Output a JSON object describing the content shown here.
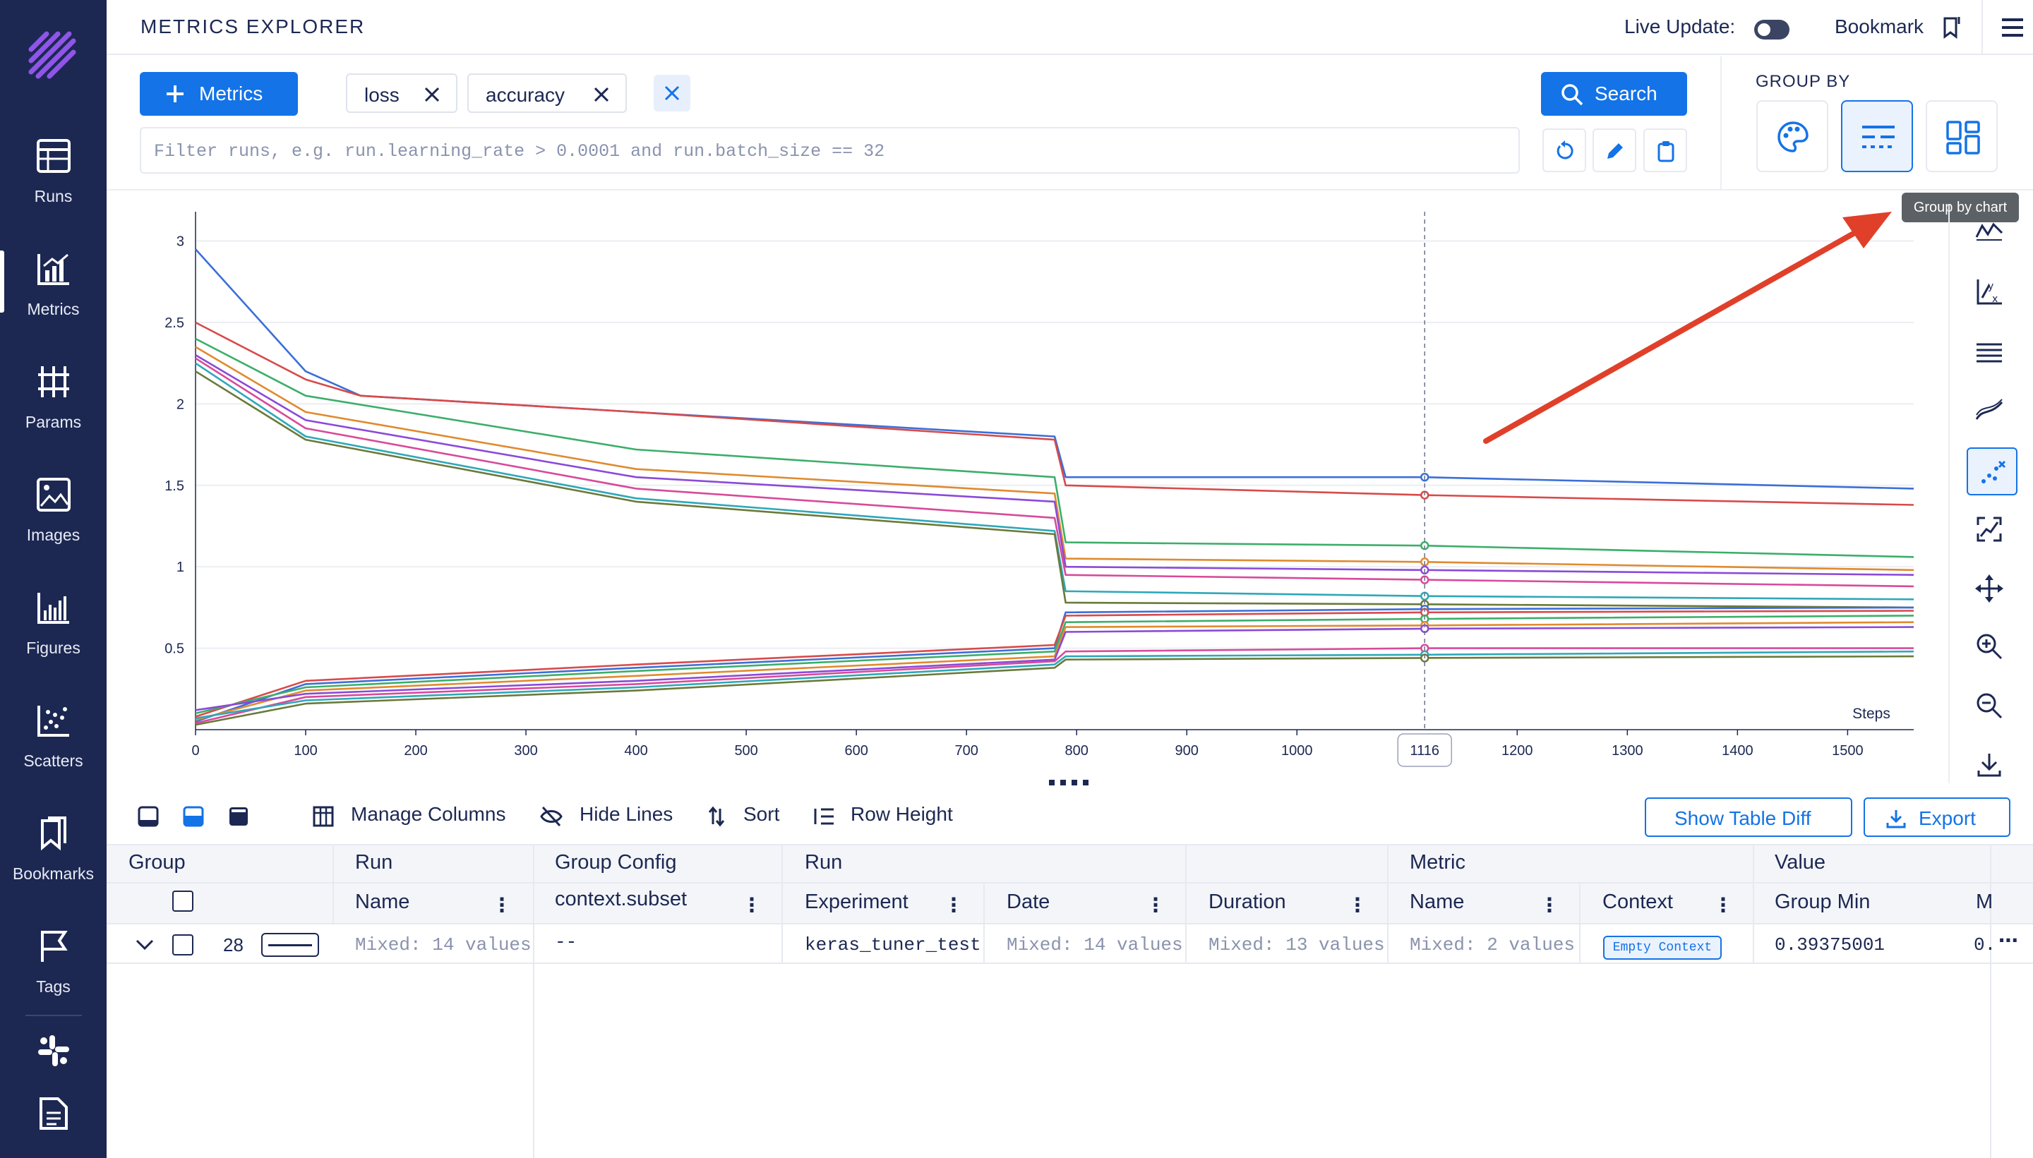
{
  "sidebar": {
    "items": [
      {
        "label": "Runs",
        "icon": "table-icon"
      },
      {
        "label": "Metrics",
        "icon": "chart-icon"
      },
      {
        "label": "Params",
        "icon": "params-icon"
      },
      {
        "label": "Images",
        "icon": "image-icon"
      },
      {
        "label": "Figures",
        "icon": "figures-icon"
      },
      {
        "label": "Scatters",
        "icon": "scatter-icon"
      },
      {
        "label": "Bookmarks",
        "icon": "bookmark-icon"
      },
      {
        "label": "Tags",
        "icon": "flag-icon"
      }
    ],
    "active": "Metrics",
    "bottom_icons": [
      "slack-icon",
      "docs-icon"
    ]
  },
  "header": {
    "title": "METRICS EXPLORER",
    "live_update_label": "Live Update:",
    "live_update_on": false,
    "bookmark_label": "Bookmark"
  },
  "controls": {
    "metrics_button": "Metrics",
    "chips": [
      "loss",
      "accuracy"
    ],
    "search_button": "Search",
    "filter_placeholder": "Filter runs, e.g. run.learning_rate > 0.0001 and run.batch_size == 32",
    "group_by_label": "GROUP BY",
    "group_by_tooltip": "Group by chart"
  },
  "chart_data": {
    "type": "line",
    "xlabel": "Steps",
    "ylabel": "",
    "xlim": [
      0,
      1560
    ],
    "ylim": [
      0,
      3.05
    ],
    "x_ticks": [
      0,
      100,
      200,
      300,
      400,
      500,
      600,
      700,
      800,
      900,
      1000,
      1200,
      1300,
      1400,
      1500
    ],
    "y_ticks": [
      0.5,
      1,
      1.5,
      2,
      2.5,
      3
    ],
    "focused_step": 1116,
    "grid": true,
    "colors": [
      "#3b6fd8",
      "#d84a4a",
      "#3cae6a",
      "#e08a2e",
      "#8a4ad8",
      "#d84a9a",
      "#2ea8b8",
      "#6a7a3a"
    ],
    "series": [
      {
        "values": [
          [
            0,
            2.95
          ],
          [
            100,
            2.2
          ],
          [
            150,
            2.05
          ],
          [
            400,
            1.95
          ],
          [
            780,
            1.8
          ],
          [
            790,
            1.55
          ],
          [
            1116,
            1.55
          ],
          [
            1560,
            1.48
          ]
        ]
      },
      {
        "values": [
          [
            0,
            2.5
          ],
          [
            100,
            2.15
          ],
          [
            150,
            2.05
          ],
          [
            400,
            1.95
          ],
          [
            780,
            1.78
          ],
          [
            790,
            1.5
          ],
          [
            1116,
            1.44
          ],
          [
            1560,
            1.38
          ]
        ]
      },
      {
        "values": [
          [
            0,
            2.4
          ],
          [
            100,
            2.05
          ],
          [
            400,
            1.72
          ],
          [
            780,
            1.55
          ],
          [
            790,
            1.15
          ],
          [
            1116,
            1.13
          ],
          [
            1560,
            1.06
          ]
        ]
      },
      {
        "values": [
          [
            0,
            2.35
          ],
          [
            100,
            1.95
          ],
          [
            400,
            1.6
          ],
          [
            780,
            1.45
          ],
          [
            790,
            1.05
          ],
          [
            1116,
            1.03
          ],
          [
            1560,
            0.98
          ]
        ]
      },
      {
        "values": [
          [
            0,
            2.3
          ],
          [
            100,
            1.9
          ],
          [
            400,
            1.55
          ],
          [
            780,
            1.4
          ],
          [
            790,
            1.0
          ],
          [
            1116,
            0.98
          ],
          [
            1560,
            0.95
          ]
        ]
      },
      {
        "values": [
          [
            0,
            2.28
          ],
          [
            100,
            1.85
          ],
          [
            400,
            1.48
          ],
          [
            780,
            1.3
          ],
          [
            790,
            0.95
          ],
          [
            1116,
            0.92
          ],
          [
            1560,
            0.88
          ]
        ]
      },
      {
        "values": [
          [
            0,
            2.25
          ],
          [
            100,
            1.8
          ],
          [
            400,
            1.42
          ],
          [
            780,
            1.22
          ],
          [
            790,
            0.85
          ],
          [
            1116,
            0.82
          ],
          [
            1560,
            0.8
          ]
        ]
      },
      {
        "values": [
          [
            0,
            2.2
          ],
          [
            100,
            1.78
          ],
          [
            400,
            1.4
          ],
          [
            780,
            1.2
          ],
          [
            790,
            0.78
          ],
          [
            1116,
            0.77
          ],
          [
            1560,
            0.75
          ]
        ]
      },
      {
        "values": [
          [
            0,
            0.05
          ],
          [
            100,
            0.28
          ],
          [
            400,
            0.38
          ],
          [
            780,
            0.5
          ],
          [
            790,
            0.72
          ],
          [
            1116,
            0.74
          ],
          [
            1560,
            0.75
          ]
        ]
      },
      {
        "values": [
          [
            0,
            0.08
          ],
          [
            100,
            0.3
          ],
          [
            400,
            0.4
          ],
          [
            780,
            0.52
          ],
          [
            790,
            0.7
          ],
          [
            1116,
            0.72
          ],
          [
            1560,
            0.73
          ]
        ]
      },
      {
        "values": [
          [
            0,
            0.1
          ],
          [
            100,
            0.26
          ],
          [
            400,
            0.36
          ],
          [
            780,
            0.48
          ],
          [
            790,
            0.66
          ],
          [
            1116,
            0.68
          ],
          [
            1560,
            0.7
          ]
        ]
      },
      {
        "values": [
          [
            0,
            0.06
          ],
          [
            100,
            0.24
          ],
          [
            400,
            0.33
          ],
          [
            780,
            0.45
          ],
          [
            790,
            0.63
          ],
          [
            1116,
            0.64
          ],
          [
            1560,
            0.66
          ]
        ]
      },
      {
        "values": [
          [
            0,
            0.12
          ],
          [
            100,
            0.22
          ],
          [
            400,
            0.3
          ],
          [
            780,
            0.43
          ],
          [
            790,
            0.6
          ],
          [
            1116,
            0.62
          ],
          [
            1560,
            0.63
          ]
        ]
      },
      {
        "values": [
          [
            0,
            0.04
          ],
          [
            100,
            0.2
          ],
          [
            400,
            0.28
          ],
          [
            780,
            0.42
          ],
          [
            790,
            0.48
          ],
          [
            1116,
            0.5
          ],
          [
            1560,
            0.5
          ]
        ]
      },
      {
        "values": [
          [
            0,
            0.07
          ],
          [
            100,
            0.18
          ],
          [
            400,
            0.26
          ],
          [
            780,
            0.4
          ],
          [
            790,
            0.45
          ],
          [
            1116,
            0.46
          ],
          [
            1560,
            0.48
          ]
        ]
      },
      {
        "values": [
          [
            0,
            0.03
          ],
          [
            100,
            0.16
          ],
          [
            400,
            0.24
          ],
          [
            780,
            0.38
          ],
          [
            790,
            0.43
          ],
          [
            1116,
            0.44
          ],
          [
            1560,
            0.45
          ]
        ]
      }
    ]
  },
  "right_tools": [
    "ignore-outliers-icon",
    "axes-scale-icon",
    "highlight-icon",
    "smoothing-icon",
    "points-icon",
    "aggregate-icon",
    "move-icon",
    "zoom-in-icon",
    "zoom-out-icon",
    "download-icon"
  ],
  "table": {
    "toolbar": {
      "manage_columns": "Manage Columns",
      "hide_lines": "Hide Lines",
      "sort": "Sort",
      "row_height": "Row Height",
      "show_table_diff": "Show Table Diff",
      "export": "Export"
    },
    "group_headers": [
      "Group",
      "Run",
      "Group Config",
      "Run",
      "Metric",
      "Value"
    ],
    "sub_headers": [
      "Name",
      "context.subset",
      "Experiment",
      "Date",
      "Duration",
      "Name",
      "Context",
      "Group Min",
      "M"
    ],
    "row": {
      "count": "28",
      "run_name": "Mixed: 14 values",
      "context_subset": "--",
      "experiment": "keras_tuner_test",
      "date": "Mixed: 14 values",
      "duration": "Mixed: 13 values",
      "metric_name": "Mixed: 2 values",
      "context": "Empty Context",
      "group_min": "0.39375001",
      "truncated": "0."
    }
  }
}
